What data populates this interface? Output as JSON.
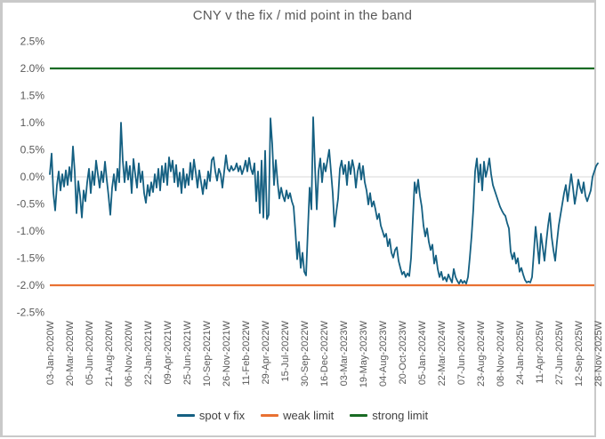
{
  "chart_data": {
    "type": "line",
    "title": "CNY v the fix / mid point in the band",
    "xlabel": "",
    "ylabel": "",
    "ylim": [
      -2.5,
      2.5
    ],
    "y_tick_labels": [
      "2.5%",
      "2.0%",
      "1.5%",
      "1.0%",
      "0.5%",
      "0.0%",
      "-0.5%",
      "-1.0%",
      "-1.5%",
      "-2.0%",
      "-2.5%"
    ],
    "gridlines": {
      "zero_line_only": true,
      "color": "#d9d9d9"
    },
    "legend_position": "bottom",
    "frequency": "weekly",
    "x_tick_every_n_points": 11,
    "x_tick_labels": [
      "03-Jan-2020W",
      "20-Mar-2020W",
      "05-Jun-2020W",
      "21-Aug-2020W",
      "06-Nov-2020W",
      "22-Jan-2021W",
      "09-Apr-2021W",
      "25-Jun-2021W",
      "10-Sep-2021W",
      "26-Nov-2021W",
      "11-Feb-2022W",
      "29-Apr-2022W",
      "15-Jul-2022W",
      "30-Sep-2022W",
      "16-Dec-2022W",
      "03-Mar-2023W",
      "19-May-2023W",
      "04-Aug-2023W",
      "20-Oct-2023W",
      "05-Jan-2024W",
      "22-Mar-2024W",
      "07-Jun-2024W",
      "23-Aug-2024W",
      "08-Nov-2024W",
      "24-Jan-2025W",
      "11-Apr-2025W",
      "27-Jun-2025W",
      "12-Sep-2025W",
      "28-Nov-2025W"
    ],
    "series": [
      {
        "name": "spot v fix",
        "color": "#156082",
        "unit": "%",
        "values": [
          0.05,
          0.43,
          -0.3,
          -0.62,
          -0.15,
          0.1,
          -0.25,
          0.05,
          -0.18,
          0.12,
          -0.15,
          0.18,
          -0.08,
          0.56,
          0.1,
          -0.67,
          -0.08,
          -0.35,
          -0.75,
          -0.25,
          -0.45,
          -0.1,
          0.15,
          -0.3,
          0.1,
          -0.15,
          0.3,
          0.05,
          -0.2,
          0.1,
          -0.1,
          0.28,
          -0.05,
          -0.35,
          -0.7,
          -0.2,
          0.05,
          -0.25,
          0.15,
          -0.1,
          1.0,
          0.3,
          -0.1,
          0.28,
          -0.05,
          0.2,
          -0.3,
          0.33,
          0.05,
          -0.2,
          0.25,
          -0.1,
          0.1,
          -0.3,
          -0.48,
          -0.15,
          -0.35,
          -0.1,
          -0.28,
          0.05,
          -0.2,
          0.15,
          -0.25,
          0.2,
          -0.1,
          0.25,
          -0.15,
          0.36,
          0.1,
          0.3,
          -0.1,
          0.22,
          -0.18,
          0.08,
          -0.3,
          0.15,
          -0.2,
          0.05,
          -0.15,
          0.26,
          -0.05,
          0.32,
          0.08,
          -0.2,
          0.12,
          -0.1,
          -0.32,
          -0.05,
          -0.22,
          0.1,
          -0.08,
          0.31,
          0.36,
          0.1,
          -0.07,
          0.15,
          0.05,
          -0.2,
          0.1,
          0.4,
          0.15,
          0.1,
          0.2,
          0.12,
          0.15,
          0.25,
          0.1,
          0.2,
          0.05,
          0.15,
          0.3,
          0.1,
          0.35,
          0.15,
          0.05,
          0.25,
          -0.45,
          0.1,
          -0.67,
          0.3,
          -0.75,
          0.48,
          -0.78,
          -0.7,
          1.08,
          0.6,
          -0.15,
          0.31,
          -0.1,
          -0.4,
          -0.2,
          -0.35,
          -0.45,
          -0.25,
          -0.4,
          -0.3,
          -0.45,
          -0.55,
          -1.0,
          -1.52,
          -1.2,
          -1.68,
          -1.4,
          -1.75,
          -1.82,
          -1.0,
          -0.2,
          -0.6,
          1.1,
          0.2,
          -0.6,
          0.1,
          0.34,
          -0.1,
          0.25,
          0.1,
          0.3,
          0.5,
          0.1,
          -0.3,
          -0.92,
          -0.65,
          -0.4,
          0.15,
          0.3,
          0.05,
          0.22,
          -0.15,
          0.28,
          0.05,
          0.31,
          0.15,
          -0.2,
          0.1,
          0.25,
          -0.05,
          0.2,
          -0.1,
          -0.25,
          -0.51,
          -0.3,
          -0.55,
          -0.45,
          -0.6,
          -0.78,
          -0.68,
          -0.9,
          -1.0,
          -1.11,
          -1.05,
          -1.28,
          -1.15,
          -1.4,
          -1.49,
          -1.35,
          -1.3,
          -1.55,
          -1.68,
          -1.8,
          -1.75,
          -1.85,
          -1.78,
          -1.83,
          -1.5,
          -0.8,
          -0.1,
          -0.3,
          -0.05,
          -0.35,
          -0.55,
          -0.9,
          -1.1,
          -0.95,
          -1.2,
          -1.35,
          -1.25,
          -1.6,
          -1.45,
          -1.7,
          -1.85,
          -1.75,
          -1.9,
          -1.85,
          -1.93,
          -1.8,
          -1.88,
          -1.95,
          -1.7,
          -1.85,
          -1.92,
          -1.97,
          -1.9,
          -1.96,
          -1.92,
          -1.97,
          -1.85,
          -1.5,
          -1.1,
          -0.6,
          0.1,
          0.34,
          -0.1,
          0.23,
          -0.25,
          0.28,
          0.0,
          0.15,
          0.34,
          0.05,
          -0.15,
          -0.25,
          -0.35,
          -0.45,
          -0.55,
          -0.62,
          -0.68,
          -0.72,
          -0.85,
          -0.95,
          -1.38,
          -1.52,
          -1.4,
          -1.6,
          -1.5,
          -1.75,
          -1.68,
          -1.8,
          -1.9,
          -1.95,
          -1.93,
          -1.95,
          -1.85,
          -1.4,
          -0.92,
          -1.25,
          -1.6,
          -1.05,
          -1.3,
          -1.55,
          -1.2,
          -0.9,
          -0.67,
          -1.1,
          -1.35,
          -1.55,
          -1.2,
          -0.9,
          -0.7,
          -0.5,
          -0.3,
          -0.15,
          -0.45,
          -0.2,
          0.05,
          -0.2,
          -0.5,
          -0.3,
          -0.05,
          -0.2,
          -0.3,
          -0.1,
          -0.35,
          -0.45,
          -0.35,
          -0.25,
          0.0,
          0.1,
          0.2,
          0.25
        ]
      },
      {
        "name": "weak limit",
        "color": "#E97132",
        "unit": "%",
        "constant": -2.0
      },
      {
        "name": "strong limit",
        "color": "#196B24",
        "unit": "%",
        "constant": 2.0
      }
    ]
  },
  "legend": {
    "entries": [
      {
        "label": "spot v fix",
        "color": "#156082"
      },
      {
        "label": "weak limit",
        "color": "#E97132"
      },
      {
        "label": "strong limit",
        "color": "#196B24"
      }
    ]
  },
  "style": {
    "axis_text_color": "#595959",
    "title_color": "#595959",
    "frame_border_color": "#c9c9c9",
    "zero_gridline_color": "#d9d9d9",
    "background": "#ffffff"
  }
}
